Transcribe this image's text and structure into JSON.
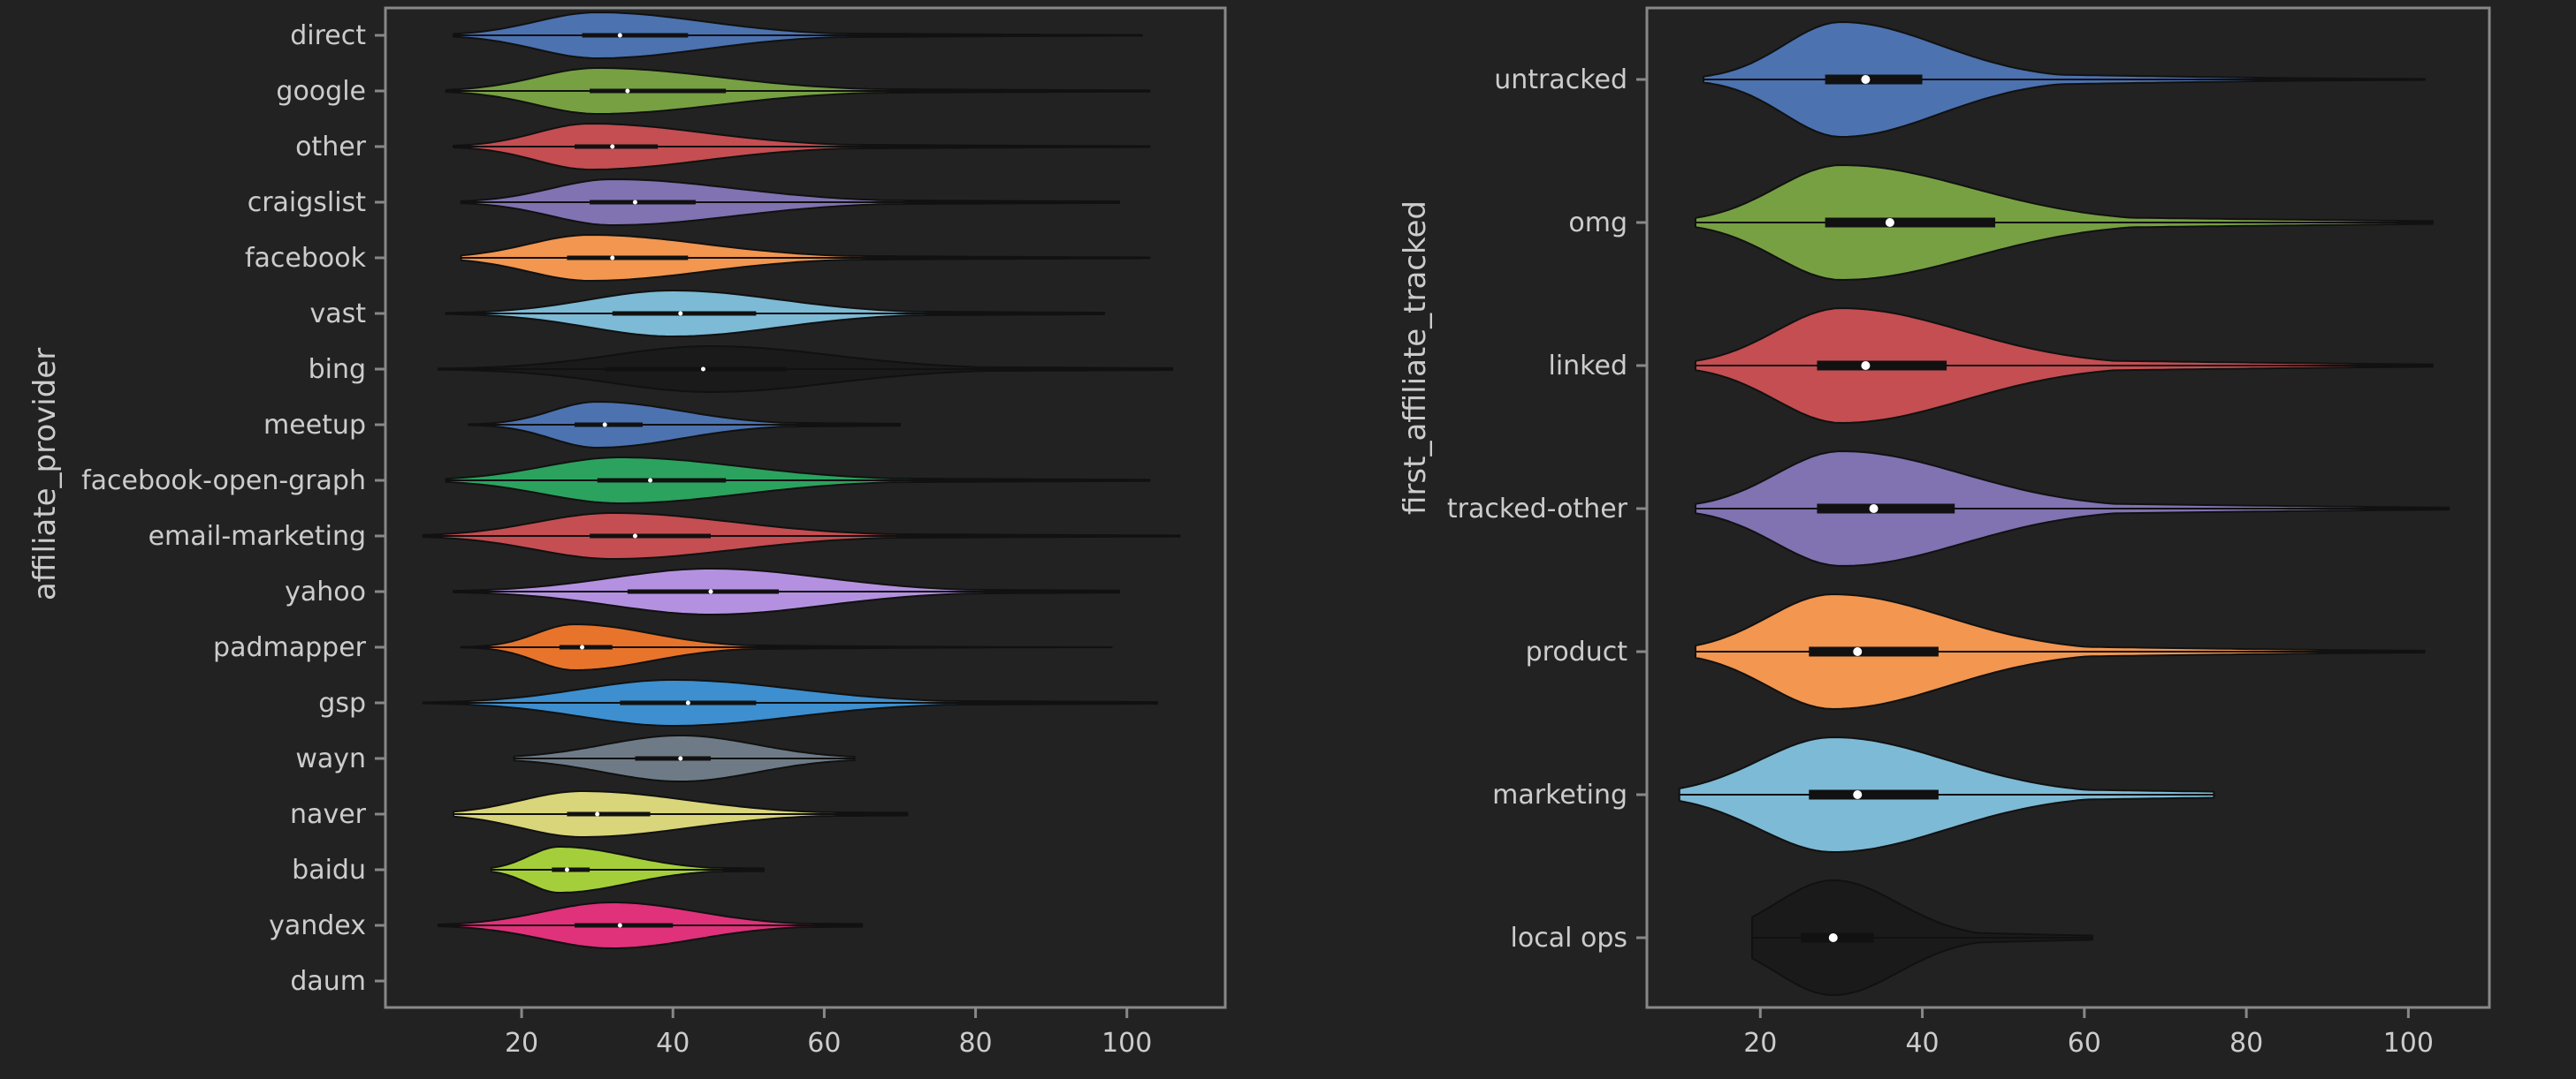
{
  "chart_data": [
    {
      "type": "violin",
      "orientation": "horizontal",
      "ylabel": "affiliate_provider",
      "xlabel": "",
      "xlim": [
        2,
        113
      ],
      "xticks": [
        20,
        40,
        60,
        80,
        100
      ],
      "grid": false,
      "legend": "none",
      "categories": [
        "direct",
        "google",
        "other",
        "craigslist",
        "facebook",
        "vast",
        "bing",
        "meetup",
        "facebook-open-graph",
        "email-marketing",
        "yahoo",
        "padmapper",
        "gsp",
        "wayn",
        "naver",
        "baidu",
        "yandex",
        "daum"
      ],
      "series": [
        {
          "category": "direct",
          "color": "#4c72b0",
          "min": 11,
          "q1": 28,
          "median": 33,
          "q3": 42,
          "max": 102,
          "mode": 30,
          "spread": [
            8,
            14
          ]
        },
        {
          "category": "google",
          "color": "#77a043",
          "min": 10,
          "q1": 29,
          "median": 34,
          "q3": 47,
          "max": 103,
          "mode": 30,
          "spread": [
            8,
            16
          ]
        },
        {
          "category": "other",
          "color": "#c44e52",
          "min": 11,
          "q1": 27,
          "median": 32,
          "q3": 38,
          "max": 103,
          "mode": 29,
          "spread": [
            7,
            15
          ]
        },
        {
          "category": "craigslist",
          "color": "#8172b2",
          "min": 12,
          "q1": 29,
          "median": 35,
          "q3": 43,
          "max": 99,
          "mode": 32,
          "spread": [
            8,
            16
          ]
        },
        {
          "category": "facebook",
          "color": "#f29650",
          "min": 12,
          "q1": 26,
          "median": 32,
          "q3": 42,
          "max": 103,
          "mode": 29,
          "spread": [
            8,
            15
          ]
        },
        {
          "category": "vast",
          "color": "#7dbad5",
          "min": 10,
          "q1": 32,
          "median": 41,
          "q3": 51,
          "max": 97,
          "mode": 40,
          "spread": [
            11,
            14
          ]
        },
        {
          "category": "bing",
          "color": "#1a1a1a",
          "min": 9,
          "q1": 31,
          "median": 44,
          "q3": 55,
          "max": 106,
          "mode": 45,
          "spread": [
            13,
            16
          ]
        },
        {
          "category": "meetup",
          "color": "#4c72b0",
          "min": 13,
          "q1": 27,
          "median": 31,
          "q3": 36,
          "max": 70,
          "mode": 30,
          "spread": [
            6,
            11
          ]
        },
        {
          "category": "facebook-open-graph",
          "color": "#2ca25f",
          "min": 10,
          "q1": 30,
          "median": 37,
          "q3": 47,
          "max": 103,
          "mode": 33,
          "spread": [
            10,
            16
          ]
        },
        {
          "category": "email-marketing",
          "color": "#c44e52",
          "min": 7,
          "q1": 29,
          "median": 35,
          "q3": 45,
          "max": 107,
          "mode": 32,
          "spread": [
            10,
            16
          ]
        },
        {
          "category": "yahoo",
          "color": "#b491e0",
          "min": 11,
          "q1": 34,
          "median": 45,
          "q3": 54,
          "max": 99,
          "mode": 45,
          "spread": [
            13,
            15
          ]
        },
        {
          "category": "padmapper",
          "color": "#e8742c",
          "min": 12,
          "q1": 25,
          "median": 28,
          "q3": 32,
          "max": 98,
          "mode": 27,
          "spread": [
            5,
            10
          ]
        },
        {
          "category": "gsp",
          "color": "#3d8fcf",
          "min": 7,
          "q1": 33,
          "median": 42,
          "q3": 51,
          "max": 104,
          "mode": 40,
          "spread": [
            12,
            16
          ]
        },
        {
          "category": "wayn",
          "color": "#6e7b87",
          "min": 19,
          "q1": 35,
          "median": 41,
          "q3": 45,
          "max": 64,
          "mode": 41,
          "spread": [
            10,
            10
          ]
        },
        {
          "category": "naver",
          "color": "#d9d57a",
          "min": 11,
          "q1": 26,
          "median": 30,
          "q3": 37,
          "max": 71,
          "mode": 28,
          "spread": [
            8,
            14
          ]
        },
        {
          "category": "baidu",
          "color": "#a5cf3a",
          "min": 16,
          "q1": 24,
          "median": 26,
          "q3": 29,
          "max": 52,
          "mode": 25,
          "spread": [
            4,
            9
          ]
        },
        {
          "category": "yandex",
          "color": "#e0317b",
          "min": 9,
          "q1": 27,
          "median": 33,
          "q3": 40,
          "max": 65,
          "mode": 32,
          "spread": [
            9,
            11
          ]
        },
        {
          "category": "daum",
          "color": "#222222",
          "empty": true
        }
      ]
    },
    {
      "type": "violin",
      "orientation": "horizontal",
      "ylabel": "first_affiliate_tracked",
      "xlabel": "",
      "xlim": [
        6,
        110
      ],
      "xticks": [
        20,
        40,
        60,
        80,
        100
      ],
      "grid": false,
      "legend": "none",
      "categories": [
        "untracked",
        "omg",
        "linked",
        "tracked-other",
        "product",
        "marketing",
        "local ops"
      ],
      "series": [
        {
          "category": "untracked",
          "color": "#4c72b0",
          "min": 13,
          "q1": 28,
          "median": 33,
          "q3": 40,
          "max": 102,
          "mode": 30,
          "spread": [
            7,
            12
          ]
        },
        {
          "category": "omg",
          "color": "#77a043",
          "min": 12,
          "q1": 28,
          "median": 36,
          "q3": 49,
          "max": 103,
          "mode": 30,
          "spread": [
            8,
            16
          ]
        },
        {
          "category": "linked",
          "color": "#c44e52",
          "min": 12,
          "q1": 27,
          "median": 33,
          "q3": 43,
          "max": 103,
          "mode": 30,
          "spread": [
            8,
            15
          ]
        },
        {
          "category": "tracked-other",
          "color": "#8172b2",
          "min": 12,
          "q1": 27,
          "median": 34,
          "q3": 44,
          "max": 105,
          "mode": 30,
          "spread": [
            8,
            15
          ]
        },
        {
          "category": "product",
          "color": "#f29650",
          "min": 12,
          "q1": 26,
          "median": 32,
          "q3": 42,
          "max": 102,
          "mode": 29,
          "spread": [
            8,
            14
          ]
        },
        {
          "category": "marketing",
          "color": "#7dbad5",
          "min": 10,
          "q1": 26,
          "median": 32,
          "q3": 42,
          "max": 76,
          "mode": 29,
          "spread": [
            9,
            14
          ]
        },
        {
          "category": "local ops",
          "color": "#1a1a1a",
          "min": 19,
          "q1": 25,
          "median": 29,
          "q3": 34,
          "max": 61,
          "mode": 29,
          "spread": [
            7,
            8
          ]
        }
      ]
    }
  ]
}
